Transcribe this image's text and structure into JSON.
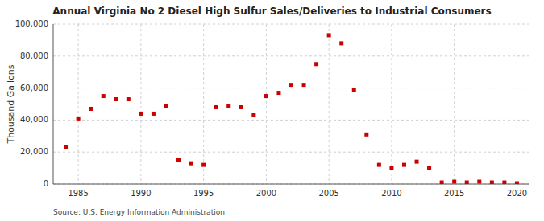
{
  "chart_data": {
    "type": "scatter",
    "title": "Annual Virginia No 2 Diesel High Sulfur Sales/Deliveries to Industrial Consumers",
    "ylabel": "Thousand Gallons",
    "source": "Source: U.S. Energy Information Administration",
    "x": [
      1984,
      1985,
      1986,
      1987,
      1988,
      1989,
      1990,
      1991,
      1992,
      1993,
      1994,
      1995,
      1996,
      1997,
      1998,
      1999,
      2000,
      2001,
      2002,
      2003,
      2004,
      2005,
      2006,
      2007,
      2008,
      2009,
      2010,
      2011,
      2012,
      2013,
      2014,
      2015,
      2016,
      2017,
      2018,
      2019,
      2020
    ],
    "values": [
      23000,
      41000,
      47000,
      55000,
      53000,
      53000,
      44000,
      44000,
      49000,
      15000,
      13000,
      12000,
      48000,
      49000,
      48000,
      43000,
      55000,
      57000,
      62000,
      62000,
      75000,
      93000,
      88000,
      59000,
      31000,
      12000,
      10000,
      12000,
      14000,
      10000,
      1000,
      1500,
      1000,
      1500,
      1000,
      1000,
      500
    ],
    "color": "#cc0000",
    "marker": "square",
    "xlim": [
      1983,
      2021
    ],
    "ylim": [
      0,
      100000
    ],
    "xticks": [
      1985,
      1990,
      1995,
      2000,
      2005,
      2010,
      2015,
      2020
    ],
    "yticks": [
      0,
      {
        "value": 20000,
        "label": "20,000"
      },
      {
        "value": 40000,
        "label": "40,000"
      },
      {
        "value": 60000,
        "label": "60,000"
      },
      {
        "value": 80000,
        "label": "80,000"
      },
      {
        "value": 100000,
        "label": "100,000"
      }
    ],
    "grid": true
  }
}
